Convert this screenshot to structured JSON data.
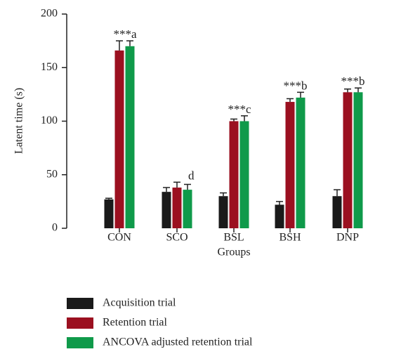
{
  "chart_data": {
    "type": "bar",
    "ylabel": "Latent time (s)",
    "xlabel": "Groups",
    "categories": [
      "CON",
      "SCO",
      "BSL",
      "BSH",
      "DNP"
    ],
    "series": [
      {
        "name": "Acquisition trial",
        "color": "#1a1a1a",
        "values": [
          27,
          34,
          30,
          22,
          30
        ],
        "errors": [
          1,
          4,
          3,
          3,
          6
        ]
      },
      {
        "name": "Retention trial",
        "color": "#9b1020",
        "values": [
          166,
          38,
          100,
          118,
          127
        ],
        "errors": [
          9,
          5,
          2,
          3,
          3
        ]
      },
      {
        "name": "ANCOVA adjusted retention trial",
        "color": "#0f9a4a",
        "values": [
          170,
          36,
          100,
          122,
          127
        ],
        "errors": [
          5,
          5,
          5,
          5,
          4
        ]
      }
    ],
    "annotations": [
      "***a",
      "d",
      "***c",
      "***b",
      "***b"
    ],
    "ylim": [
      0,
      200
    ],
    "yticks": [
      0,
      50,
      100,
      150,
      200
    ]
  }
}
